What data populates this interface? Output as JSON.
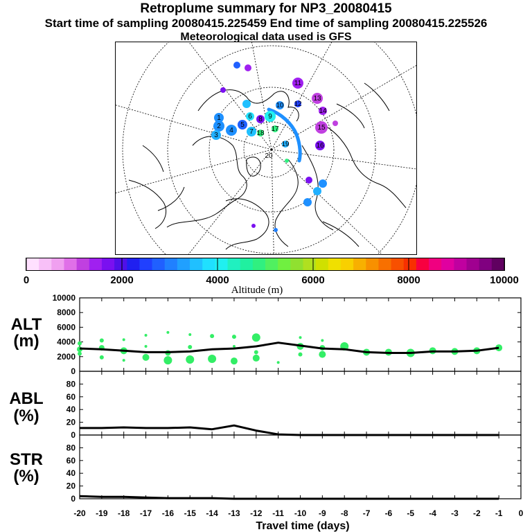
{
  "header": {
    "title": "Retroplume summary for NP3_20080415",
    "subtitle": "Start time of sampling 20080415.225459     End time of sampling 20080415.225526",
    "met": "Meteorological data used is GFS"
  },
  "map": {
    "day_labels": [
      "1",
      "2",
      "3",
      "4",
      "5",
      "6",
      "7",
      "8",
      "9",
      "10",
      "11",
      "12",
      "13",
      "14",
      "15",
      "16",
      "17",
      "18",
      "19",
      "20"
    ],
    "colors": {
      "trajectory": "#1e90ff",
      "cluster_text": "#000000"
    }
  },
  "colorbar": {
    "tick_labels": [
      "0",
      "2000",
      "4000",
      "6000",
      "8000",
      "10000"
    ],
    "label": "Altitude (m)",
    "colors": [
      "#ffe0ff",
      "#f8c0f8",
      "#f0a0f0",
      "#e070e8",
      "#c040e0",
      "#a020f0",
      "#7a10f0",
      "#5010e8",
      "#2020f0",
      "#2040ff",
      "#2060ff",
      "#2080ff",
      "#20a0ff",
      "#20c0ff",
      "#20e0ff",
      "#20f0f0",
      "#20f0c0",
      "#20f0a0",
      "#30f080",
      "#50f060",
      "#70f040",
      "#90e030",
      "#b0e020",
      "#d0e000",
      "#f0e000",
      "#f8d000",
      "#f8b000",
      "#f89000",
      "#f87000",
      "#f85000",
      "#f83000",
      "#f80040",
      "#f00080",
      "#e000a0",
      "#c000a0",
      "#a00090",
      "#800080",
      "#600060"
    ]
  },
  "axes": {
    "xlabel": "Travel time (days)",
    "alt_label": [
      "ALT",
      "(m)"
    ],
    "abl_label": [
      "ABL",
      "(%)"
    ],
    "str_label": [
      "STR",
      "(%)"
    ]
  },
  "chart_data": [
    {
      "type": "line",
      "name": "ALT",
      "title": "ALT (m)",
      "xlabel": "Travel time (days)",
      "ylabel": "ALT (m)",
      "xlim": [
        -20,
        0
      ],
      "ylim": [
        0,
        10000
      ],
      "x_ticks": [
        "-20",
        "-19",
        "-18",
        "-17",
        "-16",
        "-15",
        "-14",
        "-13",
        "-12",
        "-11",
        "-10",
        "-9",
        "-8",
        "-7",
        "-6",
        "-5",
        "-4",
        "-3",
        "-2",
        "-1",
        "0"
      ],
      "y_ticks": [
        "0",
        "2000",
        "4000",
        "6000",
        "8000",
        "10000"
      ],
      "x": [
        -20,
        -19,
        -18,
        -17,
        -16,
        -15,
        -14,
        -13,
        -12,
        -11,
        -10,
        -9,
        -8,
        -7,
        -6,
        -5,
        -4,
        -3,
        -2,
        -1
      ],
      "values": [
        3100,
        3000,
        2800,
        2600,
        2600,
        2700,
        3000,
        3100,
        3400,
        3900,
        3500,
        3100,
        3000,
        2600,
        2500,
        2500,
        2700,
        2700,
        2800,
        3200
      ],
      "cluster_points": [
        {
          "x": -20,
          "y": 3800,
          "r": 3
        },
        {
          "x": -20,
          "y": 3000,
          "r": 4
        },
        {
          "x": -20,
          "y": 2400,
          "r": 3
        },
        {
          "x": -19,
          "y": 4200,
          "r": 3
        },
        {
          "x": -19,
          "y": 3200,
          "r": 4
        },
        {
          "x": -19,
          "y": 1900,
          "r": 3
        },
        {
          "x": -18,
          "y": 4300,
          "r": 2
        },
        {
          "x": -18,
          "y": 2800,
          "r": 5
        },
        {
          "x": -18,
          "y": 1500,
          "r": 2
        },
        {
          "x": -17,
          "y": 4900,
          "r": 2
        },
        {
          "x": -17,
          "y": 3400,
          "r": 2
        },
        {
          "x": -17,
          "y": 1900,
          "r": 5
        },
        {
          "x": -16,
          "y": 5300,
          "r": 2
        },
        {
          "x": -16,
          "y": 2500,
          "r": 4
        },
        {
          "x": -16,
          "y": 1500,
          "r": 6
        },
        {
          "x": -15,
          "y": 5000,
          "r": 2
        },
        {
          "x": -15,
          "y": 3300,
          "r": 3
        },
        {
          "x": -15,
          "y": 1600,
          "r": 6
        },
        {
          "x": -14,
          "y": 4800,
          "r": 3
        },
        {
          "x": -14,
          "y": 1700,
          "r": 6
        },
        {
          "x": -13,
          "y": 4700,
          "r": 3
        },
        {
          "x": -13,
          "y": 3400,
          "r": 2
        },
        {
          "x": -13,
          "y": 1400,
          "r": 5
        },
        {
          "x": -12,
          "y": 4600,
          "r": 6
        },
        {
          "x": -12,
          "y": 2600,
          "r": 3
        },
        {
          "x": -12,
          "y": 1800,
          "r": 5
        },
        {
          "x": -11,
          "y": 1200,
          "r": 2
        },
        {
          "x": -10,
          "y": 4600,
          "r": 2
        },
        {
          "x": -10,
          "y": 3400,
          "r": 5
        },
        {
          "x": -10,
          "y": 2300,
          "r": 3
        },
        {
          "x": -9,
          "y": 4200,
          "r": 2
        },
        {
          "x": -9,
          "y": 3200,
          "r": 4
        },
        {
          "x": -9,
          "y": 2300,
          "r": 5
        },
        {
          "x": -8,
          "y": 3400,
          "r": 6
        },
        {
          "x": -7,
          "y": 2600,
          "r": 5
        },
        {
          "x": -6,
          "y": 2600,
          "r": 5
        },
        {
          "x": -5,
          "y": 2500,
          "r": 6
        },
        {
          "x": -4,
          "y": 2800,
          "r": 5
        },
        {
          "x": -3,
          "y": 2700,
          "r": 5
        },
        {
          "x": -2,
          "y": 2800,
          "r": 5
        },
        {
          "x": -1,
          "y": 3200,
          "r": 5
        }
      ],
      "cluster_color": "#33ee66"
    },
    {
      "type": "line",
      "name": "ABL",
      "title": "ABL (%)",
      "xlabel": "Travel time (days)",
      "ylabel": "ABL (%)",
      "xlim": [
        -20,
        0
      ],
      "ylim": [
        0,
        100
      ],
      "y_ticks": [
        "0",
        "20",
        "40",
        "60",
        "80"
      ],
      "x": [
        -20,
        -19,
        -18,
        -17,
        -16,
        -15,
        -14,
        -13,
        -12,
        -11,
        -10,
        -9,
        -8,
        -7,
        -6,
        -5,
        -4,
        -3,
        -2,
        -1
      ],
      "values": [
        11,
        11,
        12,
        11,
        11,
        12,
        9,
        15,
        7,
        1,
        0,
        0,
        0,
        0,
        0,
        0,
        0,
        0,
        0,
        0
      ]
    },
    {
      "type": "line",
      "name": "STR",
      "title": "STR (%)",
      "xlabel": "Travel time (days)",
      "ylabel": "STR (%)",
      "xlim": [
        -20,
        0
      ],
      "ylim": [
        0,
        100
      ],
      "y_ticks": [
        "0",
        "20",
        "40",
        "60",
        "80"
      ],
      "x": [
        -20,
        -19,
        -18,
        -17,
        -16,
        -15,
        -14,
        -13,
        -12,
        -11,
        -10,
        -9,
        -8,
        -7,
        -6,
        -5,
        -4,
        -3,
        -2,
        -1
      ],
      "values": [
        4,
        3,
        3,
        2,
        1,
        1,
        1,
        0,
        0,
        0,
        0,
        0,
        0,
        0,
        0,
        0,
        0,
        0,
        0,
        0
      ]
    }
  ]
}
